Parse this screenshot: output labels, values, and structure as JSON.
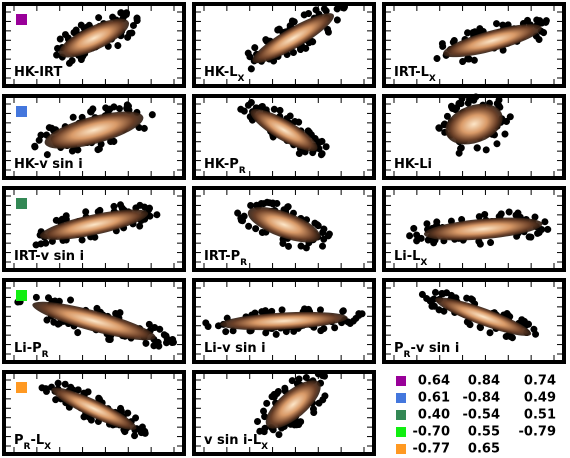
{
  "panels": [
    {
      "label": [
        "HK-IRT"
      ],
      "marker": "#990099"
    },
    {
      "label": [
        "HK-L",
        "X"
      ]
    },
    {
      "label": [
        "IRT-L",
        "X"
      ]
    },
    {
      "label": [
        "HK-v sin i"
      ],
      "marker": "#4477dd"
    },
    {
      "label": [
        "HK-P",
        "R"
      ]
    },
    {
      "label": [
        "HK-Li"
      ]
    },
    {
      "label": [
        "IRT-v sin i"
      ],
      "marker": "#338855"
    },
    {
      "label": [
        "IRT-P",
        "R"
      ]
    },
    {
      "label": [
        "Li-L",
        "X"
      ]
    },
    {
      "label": [
        "Li-P",
        "R"
      ],
      "marker": "#11ee11"
    },
    {
      "label": [
        "Li-v sin i"
      ]
    },
    {
      "label": [
        "P",
        "R",
        "-v sin i"
      ]
    },
    {
      "label": [
        "P",
        "R",
        "-L",
        "X"
      ],
      "marker": "#ff9922"
    },
    {
      "label": [
        "v sin i-L",
        "X"
      ]
    }
  ],
  "table": {
    "rows": [
      {
        "color": "#990099",
        "cells": [
          "0.64",
          "0.84",
          "0.74"
        ]
      },
      {
        "color": "#4477dd",
        "cells": [
          "0.61",
          "-0.84",
          "0.49"
        ]
      },
      {
        "color": "#338855",
        "cells": [
          "0.40",
          "-0.54",
          "0.51"
        ]
      },
      {
        "color": "#11ee11",
        "cells": [
          "-0.70",
          "0.55",
          "-0.79"
        ]
      },
      {
        "color": "#ff9922",
        "cells": [
          "-0.77",
          "0.65"
        ]
      }
    ]
  }
}
